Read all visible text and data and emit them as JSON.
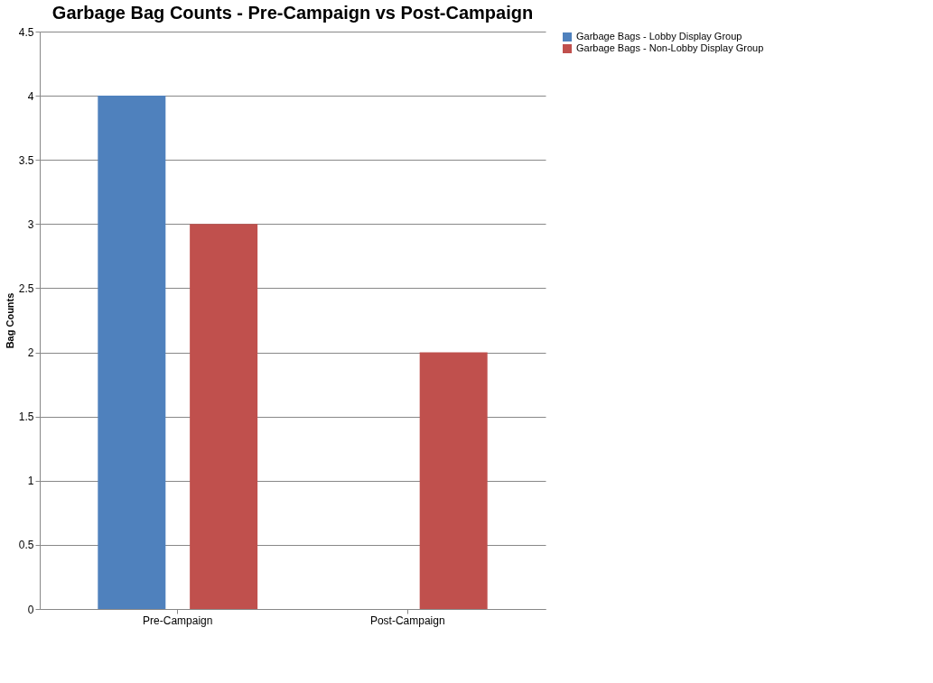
{
  "chart_data": {
    "type": "bar",
    "title": "Garbage Bag Counts - Pre-Campaign vs Post-Campaign",
    "ylabel": "Bag Counts",
    "categories": [
      "Pre-Campaign",
      "Post-Campaign"
    ],
    "series": [
      {
        "name": "Garbage Bags - Lobby Display Group",
        "color": "#4f81bd",
        "values": [
          4,
          0
        ]
      },
      {
        "name": "Garbage Bags - Non-Lobby Display Group",
        "color": "#c0504d",
        "values": [
          3,
          2
        ]
      }
    ],
    "ylim": [
      0,
      4.5
    ],
    "yticks": [
      0,
      0.5,
      1,
      1.5,
      2,
      2.5,
      3,
      3.5,
      4,
      4.5
    ],
    "grid": "y",
    "legend": "right"
  }
}
